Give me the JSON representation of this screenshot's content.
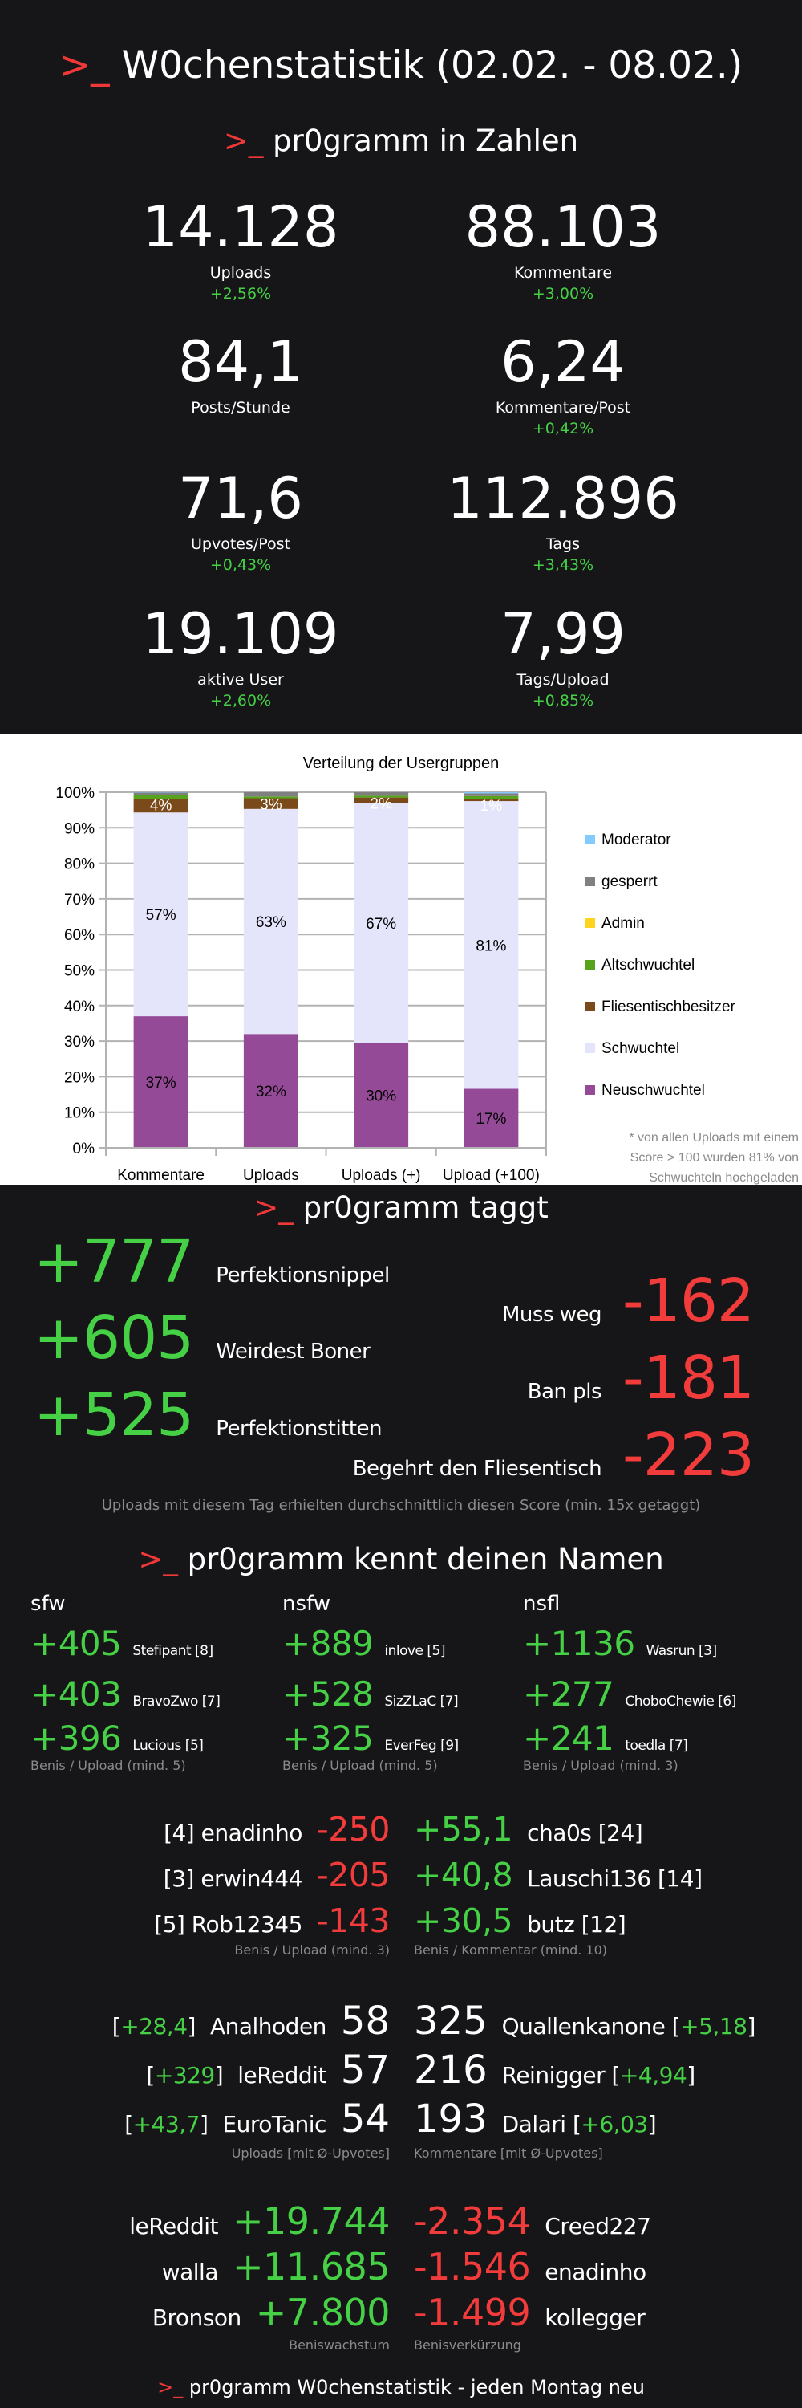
{
  "prompt": ">_",
  "title": "W0chenstatistik (02.02. - 08.02.)",
  "section1": {
    "title": "pr0gramm in Zahlen",
    "stats": [
      {
        "value": "14.128",
        "label": "Uploads",
        "delta": "+2,56%"
      },
      {
        "value": "88.103",
        "label": "Kommentare",
        "delta": "+3,00%"
      },
      {
        "value": "84,1",
        "label": "Posts/Stunde",
        "delta": ""
      },
      {
        "value": "6,24",
        "label": "Kommentare/Post",
        "delta": "+0,42%"
      },
      {
        "value": "71,6",
        "label": "Upvotes/Post",
        "delta": "+0,43%"
      },
      {
        "value": "112.896",
        "label": "Tags",
        "delta": "+3,43%"
      },
      {
        "value": "19.109",
        "label": "aktive User",
        "delta": "+2,60%"
      },
      {
        "value": "7,99",
        "label": "Tags/Upload",
        "delta": "+0,85%"
      }
    ]
  },
  "chart_data": {
    "type": "bar",
    "stacked": true,
    "title": "Verteilung der Usergruppen",
    "categories": [
      "Kommentare",
      "Uploads",
      "Uploads (+)",
      "Upload (+100)"
    ],
    "ylim": [
      0,
      100
    ],
    "yticks": [
      "0%",
      "10%",
      "20%",
      "30%",
      "40%",
      "50%",
      "60%",
      "70%",
      "80%",
      "90%",
      "100%"
    ],
    "series": [
      {
        "name": "Neuschwuchtel",
        "color": "#954a97",
        "values": [
          37,
          32,
          29.6,
          16.6
        ],
        "labels": [
          "37%",
          "32%",
          "30%",
          "17%"
        ],
        "label_color": "#000000"
      },
      {
        "name": "Schwuchtel",
        "color": "#e4e4fb",
        "values": [
          57.3,
          63.3,
          67.3,
          80.9
        ],
        "labels": [
          "57%",
          "63%",
          "67%",
          "81%"
        ],
        "label_color": "#000000"
      },
      {
        "name": "Fliesentischbesitzer",
        "color": "#7b4a1a",
        "values": [
          3.8,
          3,
          1.6,
          0.5
        ],
        "labels": [
          "4%",
          "3%",
          "2%",
          "1%"
        ],
        "label_color": "#ffffff"
      },
      {
        "name": "Altschwuchtel",
        "color": "#56a31e",
        "values": [
          1.2,
          0.5,
          0.5,
          0.9
        ],
        "labels": [],
        "label_color": "#ffffff"
      },
      {
        "name": "Admin",
        "color": "#ffd320",
        "values": [
          0,
          0,
          0,
          0
        ],
        "labels": [],
        "label_color": "#000000"
      },
      {
        "name": "gesperrt",
        "color": "#808080",
        "values": [
          0.6,
          1.2,
          1,
          0.8
        ],
        "labels": [],
        "label_color": "#000000"
      },
      {
        "name": "Moderator",
        "color": "#83caff",
        "values": [
          0.1,
          0,
          0,
          0.3
        ],
        "labels": [],
        "label_color": "#000000"
      }
    ],
    "legend_order": [
      "Moderator",
      "gesperrt",
      "Admin",
      "Altschwuchtel",
      "Fliesentischbesitzer",
      "Schwuchtel",
      "Neuschwuchtel"
    ],
    "legend": "right",
    "footnote": [
      "* von allen Uploads mit einem",
      "Score > 100 wurden 81% von",
      "Schwuchteln hochgeladen"
    ]
  },
  "section2": {
    "title": "pr0gramm taggt",
    "top": [
      {
        "score": "+777",
        "tag": "Perfektionsnippel"
      },
      {
        "score": "+605",
        "tag": "Weirdest Boner"
      },
      {
        "score": "+525",
        "tag": "Perfektionstitten"
      }
    ],
    "flop": [
      {
        "score": "-162",
        "tag": "Muss weg"
      },
      {
        "score": "-181",
        "tag": "Ban pls"
      },
      {
        "score": "-223",
        "tag": "Begehrt den Fliesentisch"
      }
    ],
    "note": "Uploads mit diesem Tag erhielten durchschnittlich diesen Score (min. 15x getaggt)"
  },
  "section3": {
    "title": "pr0gramm kennt deinen Namen",
    "columns": [
      {
        "header": "sfw",
        "rows": [
          {
            "score": "+405",
            "user": "Stefipant [8]"
          },
          {
            "score": "+403",
            "user": "BravoZwo [7]"
          },
          {
            "score": "+396",
            "user": "Lucious [5]"
          }
        ],
        "note": "Benis / Upload (mind. 5)"
      },
      {
        "header": "nsfw",
        "rows": [
          {
            "score": "+889",
            "user": "inlove [5]"
          },
          {
            "score": "+528",
            "user": "SizZLaC [7]"
          },
          {
            "score": "+325",
            "user": "EverFeg [9]"
          }
        ],
        "note": "Benis / Upload (mind. 5)"
      },
      {
        "header": "nsfl",
        "rows": [
          {
            "score": "+1136",
            "user": "Wasrun [3]"
          },
          {
            "score": "+277",
            "user": "ChoboChewie [6]"
          },
          {
            "score": "+241",
            "user": "toedla [7]"
          }
        ],
        "note": "Benis / Upload (mind. 3)"
      }
    ],
    "worst_uploads": [
      {
        "user": "[4] enadinho",
        "score": "-250"
      },
      {
        "user": "[3] erwin444",
        "score": "-205"
      },
      {
        "user": "[5] Rob12345",
        "score": "-143"
      }
    ],
    "worst_uploads_note": "Benis / Upload (mind. 3)",
    "best_comments": [
      {
        "score": "+55,1",
        "user": "cha0s [24]"
      },
      {
        "score": "+40,8",
        "user": "Lauschi136 [14]"
      },
      {
        "score": "+30,5",
        "user": "butz [12]"
      }
    ],
    "best_comments_note": "Benis / Kommentar (mind. 10)",
    "most_uploads": [
      {
        "avg": "+28,4",
        "user": "Analhoden",
        "count": "58"
      },
      {
        "avg": "+329",
        "user": "leReddit",
        "count": "57"
      },
      {
        "avg": "+43,7",
        "user": "EuroTanic",
        "count": "54"
      }
    ],
    "most_uploads_note": "Uploads [mit Ø-Upvotes]",
    "most_comments": [
      {
        "count": "325",
        "user": "Quallenkanone",
        "avg": "+5,18"
      },
      {
        "count": "216",
        "user": "Reinigger",
        "avg": "+4,94"
      },
      {
        "count": "193",
        "user": "Dalari",
        "avg": "+6,03"
      }
    ],
    "most_comments_note": "Kommentare [mit Ø-Upvotes]",
    "benis_growth": [
      {
        "user": "leReddit",
        "value": "+19.744"
      },
      {
        "user": "walla",
        "value": "+11.685"
      },
      {
        "user": "Bronson",
        "value": "+7.800"
      }
    ],
    "benis_growth_note": "Beniswachstum",
    "benis_loss": [
      {
        "value": "-2.354",
        "user": "Creed227"
      },
      {
        "value": "-1.546",
        "user": "enadinho"
      },
      {
        "value": "-1.499",
        "user": "kollegger"
      }
    ],
    "benis_loss_note": "Benisverkürzung"
  },
  "footer": "pr0gramm W0chenstatistik - jeden Montag neu"
}
